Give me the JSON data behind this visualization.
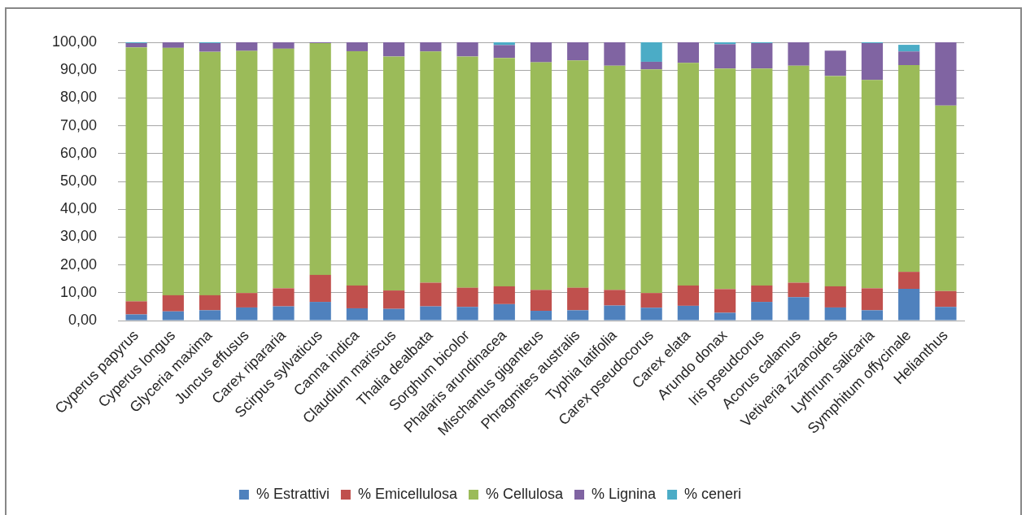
{
  "chart_data": {
    "type": "bar",
    "stacked": true,
    "categories": [
      "Cyperus papyrus",
      "Cyperus longus",
      "Glyceria maxima",
      "Juncus effusus",
      "Carex ripararia",
      "Scirpus sylvaticus",
      "Canna indica",
      "Claudium mariscus",
      "Thalia dealbata",
      "Sorghum bicolor",
      "Phalaris arundinacea",
      "Mischantus giganteus",
      "Phragmites australis",
      "Typhia latifolia",
      "Carex pseudocorus",
      "Carex elata",
      "Arundo donax",
      "Iris pseudcorus",
      "Acorus calamus",
      "Vetiveria zizanoides",
      "Lythrum salicaria",
      "Symphitum offycinale",
      "Helianthus"
    ],
    "series": [
      {
        "name": "% Estrattivi",
        "color": "#4f81bd",
        "values": [
          2.2,
          3.3,
          3.7,
          4.7,
          5.1,
          6.7,
          4.4,
          4.2,
          5.1,
          4.9,
          5.9,
          3.5,
          3.7,
          5.4,
          4.6,
          5.3,
          2.8,
          6.7,
          8.4,
          4.7,
          3.7,
          11.4,
          4.9
        ]
      },
      {
        "name": "% Emicellulosa",
        "color": "#c0504d",
        "values": [
          4.7,
          5.8,
          5.4,
          5.2,
          6.5,
          9.7,
          8.2,
          6.6,
          8.5,
          6.9,
          6.4,
          7.5,
          8.1,
          5.6,
          5.3,
          7.3,
          8.5,
          5.9,
          5.2,
          7.6,
          7.9,
          6.1,
          5.7
        ]
      },
      {
        "name": "% Cellulosa",
        "color": "#9bbb59",
        "values": [
          91.3,
          88.9,
          87.5,
          87.0,
          86.1,
          83.3,
          84.2,
          84.1,
          83.1,
          83.1,
          82.1,
          81.8,
          81.7,
          80.6,
          80.4,
          80.0,
          79.3,
          78.0,
          78.0,
          75.6,
          74.9,
          74.3,
          66.7
        ]
      },
      {
        "name": "% Lignina",
        "color": "#8064a2",
        "values": [
          1.5,
          2.0,
          3.1,
          3.1,
          2.3,
          0.3,
          3.2,
          5.1,
          3.3,
          5.1,
          4.6,
          7.2,
          6.5,
          8.4,
          2.7,
          7.4,
          8.7,
          9.1,
          8.4,
          9.1,
          13.2,
          4.9,
          22.7
        ]
      },
      {
        "name": "% ceneri",
        "color": "#4bacc6",
        "values": [
          0.3,
          null,
          0.3,
          null,
          null,
          null,
          null,
          null,
          null,
          null,
          1.0,
          null,
          null,
          null,
          7.0,
          null,
          0.7,
          0.3,
          null,
          null,
          0.3,
          2.4,
          null
        ]
      }
    ],
    "ylim": [
      0,
      100
    ],
    "yticks": [
      {
        "value": 0,
        "label": "0,00"
      },
      {
        "value": 10,
        "label": "10,00"
      },
      {
        "value": 20,
        "label": "20,00"
      },
      {
        "value": 30,
        "label": "30,00"
      },
      {
        "value": 40,
        "label": "40,00"
      },
      {
        "value": 50,
        "label": "50,00"
      },
      {
        "value": 60,
        "label": "60,00"
      },
      {
        "value": 70,
        "label": "70,00"
      },
      {
        "value": 80,
        "label": "80,00"
      },
      {
        "value": 90,
        "label": "90,00"
      },
      {
        "value": 100,
        "label": "100,00"
      }
    ],
    "grid": "y",
    "legend": "bottom"
  }
}
